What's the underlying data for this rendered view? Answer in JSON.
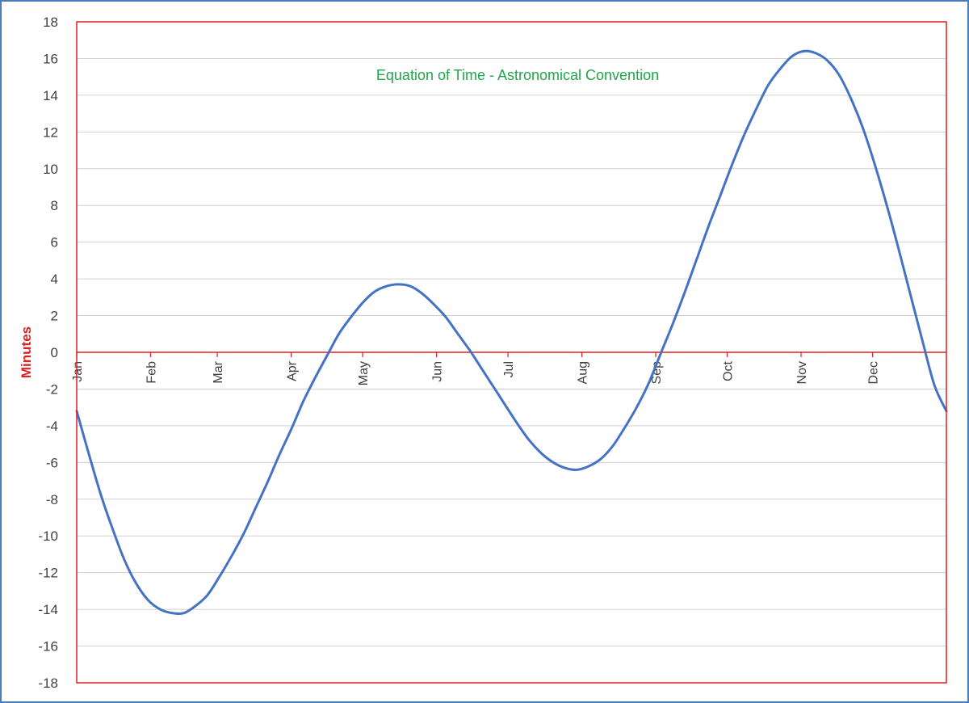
{
  "colors": {
    "frame": "#4a7bbf",
    "plot_border": "#e01f1f",
    "zero_line": "#e01f1f",
    "gridline": "#d0d0d0",
    "series": "#4472c4",
    "title": "#1fa64a",
    "ylabel": "#e01f1f",
    "tick_text": "#404040"
  },
  "chart_data": {
    "type": "line",
    "title": "Equation of Time - Astronomical Convention",
    "xlabel": "",
    "ylabel": "Minutes",
    "ylim": [
      -18,
      18
    ],
    "yticks": [
      18,
      16,
      14,
      12,
      10,
      8,
      6,
      4,
      2,
      0,
      -2,
      -4,
      -6,
      -8,
      -10,
      -12,
      -14,
      -16,
      -18
    ],
    "xlim": [
      1,
      366
    ],
    "x_unit": "day of year",
    "grid": true,
    "legend": "none",
    "months": [
      {
        "label": "Jan",
        "day": 1
      },
      {
        "label": "Feb",
        "day": 32
      },
      {
        "label": "Mar",
        "day": 60
      },
      {
        "label": "Apr",
        "day": 91
      },
      {
        "label": "May",
        "day": 121
      },
      {
        "label": "Jun",
        "day": 152
      },
      {
        "label": "Jul",
        "day": 182
      },
      {
        "label": "Aug",
        "day": 213
      },
      {
        "label": "Sep",
        "day": 244
      },
      {
        "label": "Oct",
        "day": 274
      },
      {
        "label": "Nov",
        "day": 305
      },
      {
        "label": "Dec",
        "day": 335
      }
    ],
    "series": [
      {
        "x": [
          1,
          6,
          11,
          16,
          21,
          26,
          31,
          36,
          41,
          46,
          51,
          56,
          61,
          66,
          71,
          76,
          81,
          86,
          91,
          96,
          101,
          106,
          111,
          116,
          121,
          126,
          131,
          136,
          141,
          146,
          151,
          156,
          161,
          166,
          171,
          176,
          181,
          186,
          191,
          196,
          201,
          206,
          211,
          216,
          221,
          226,
          231,
          236,
          241,
          246,
          251,
          256,
          261,
          266,
          271,
          276,
          281,
          286,
          291,
          296,
          301,
          306,
          311,
          316,
          321,
          326,
          331,
          336,
          341,
          346,
          351,
          356,
          361,
          366
        ],
        "y": [
          -3.2,
          -5.5,
          -7.7,
          -9.6,
          -11.3,
          -12.6,
          -13.5,
          -14.0,
          -14.2,
          -14.2,
          -13.8,
          -13.2,
          -12.2,
          -11.1,
          -9.9,
          -8.5,
          -7.1,
          -5.6,
          -4.2,
          -2.7,
          -1.4,
          -0.2,
          1.0,
          1.9,
          2.7,
          3.3,
          3.6,
          3.7,
          3.6,
          3.2,
          2.6,
          1.9,
          1.0,
          0.1,
          -0.9,
          -1.9,
          -2.9,
          -3.9,
          -4.8,
          -5.5,
          -6.0,
          -6.3,
          -6.4,
          -6.2,
          -5.8,
          -5.1,
          -4.1,
          -3.0,
          -1.7,
          -0.1,
          1.5,
          3.2,
          5.0,
          6.8,
          8.5,
          10.2,
          11.8,
          13.2,
          14.5,
          15.4,
          16.1,
          16.4,
          16.3,
          15.9,
          15.1,
          13.8,
          12.2,
          10.2,
          8.0,
          5.6,
          3.1,
          0.6,
          -1.8,
          -3.2
        ]
      }
    ]
  }
}
